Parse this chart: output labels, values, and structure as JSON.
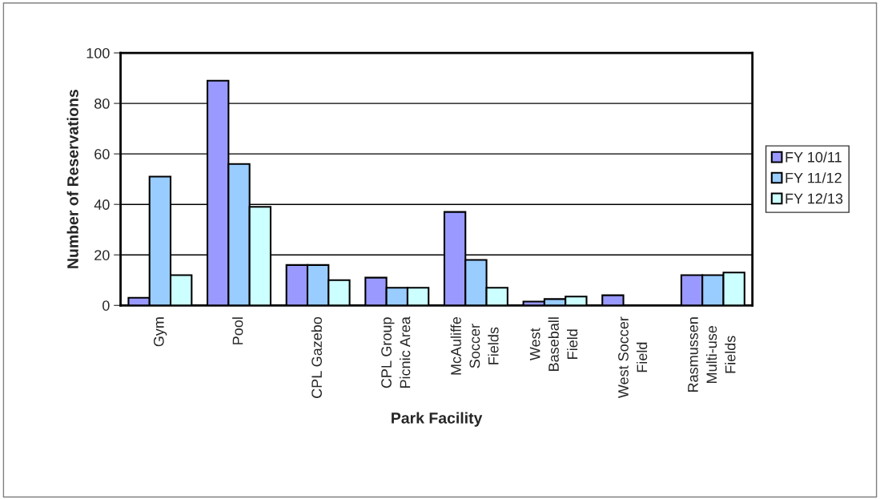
{
  "chart_data": {
    "type": "bar",
    "xlabel": "Park Facility",
    "ylabel": "Number of Reservations",
    "categories": [
      "Gym",
      "Pool",
      "CPL Gazebo",
      "CPL Group\nPicnic Area",
      "McAuliffe\nSoccer\nFields",
      "West\nBaseball\nField",
      "West Soccer\nField",
      "Rasmussen\nMulti-use\nFields"
    ],
    "series": [
      {
        "name": "FY 10/11",
        "color": "#9999ff",
        "values": [
          3,
          89,
          16,
          11,
          37,
          1.5,
          4,
          12
        ]
      },
      {
        "name": "FY 11/12",
        "color": "#99ccff",
        "values": [
          51,
          56,
          16,
          7,
          18,
          2.5,
          0,
          12
        ]
      },
      {
        "name": "FY 12/13",
        "color": "#ccffff",
        "values": [
          12,
          39,
          10,
          7,
          7,
          3.5,
          0,
          13
        ]
      }
    ],
    "ylim": [
      0,
      100
    ],
    "yticks": [
      0,
      20,
      40,
      60,
      80,
      100
    ],
    "grid": "y",
    "legend": "right"
  }
}
